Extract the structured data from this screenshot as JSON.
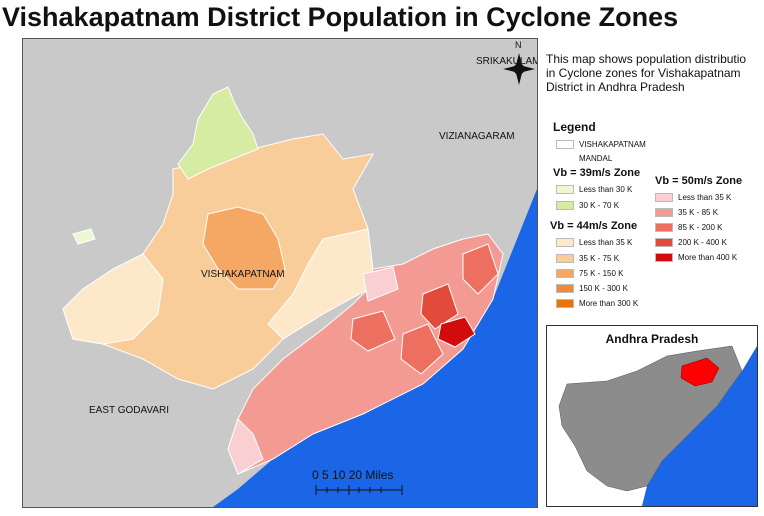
{
  "title": "Vishakapatnam District Population in Cyclone Zones",
  "description": [
    "This map shows population distributio",
    "in Cyclone zones for Vishakapatnam",
    "District in Andhra Pradesh"
  ],
  "map_labels": {
    "srikakulam": "SRIKAKULAM",
    "vizianagaram": "VIZIANAGARAM",
    "vishakapatnam": "VISHAKAPATNAM",
    "east_godavari": "EAST GODAVARI",
    "north": "N"
  },
  "legend": {
    "title": "Legend",
    "outline_label_1": "VISHAKAPATNAM",
    "outline_label_2": "MANDAL",
    "zone39": {
      "title": "Vb = 39m/s Zone",
      "items": [
        {
          "label": "Less than 30 K",
          "color": "#eef7d4"
        },
        {
          "label": "30 K - 70 K",
          "color": "#d6eca2"
        }
      ]
    },
    "zone44": {
      "title": "Vb = 44m/s Zone",
      "items": [
        {
          "label": "Less than 35 K",
          "color": "#fde9c9"
        },
        {
          "label": "35 K - 75 K",
          "color": "#f9cd9a"
        },
        {
          "label": "75 K - 150 K",
          "color": "#f5a764"
        },
        {
          "label": "150 K - 300 K",
          "color": "#f08a36"
        },
        {
          "label": "More than 300 K",
          "color": "#e8730b"
        }
      ]
    },
    "zone50": {
      "title": "Vb = 50m/s Zone",
      "items": [
        {
          "label": "Less than 35 K",
          "color": "#f9cfd2"
        },
        {
          "label": "35 K - 85 K",
          "color": "#f39b92"
        },
        {
          "label": "85 K - 200 K",
          "color": "#ec6f5f"
        },
        {
          "label": "200 K - 400 K",
          "color": "#e24a39"
        },
        {
          "label": "More than 400 K",
          "color": "#d20c0c"
        }
      ]
    }
  },
  "inset": {
    "title": "Andhra Pradesh"
  },
  "scale": {
    "text": "0   5  10      20 Miles"
  },
  "colors": {
    "sea": "#1a66e6",
    "land_gray": "#c9c9c9",
    "state_gray": "#8c8c8c",
    "highlight": "#ff0000"
  }
}
